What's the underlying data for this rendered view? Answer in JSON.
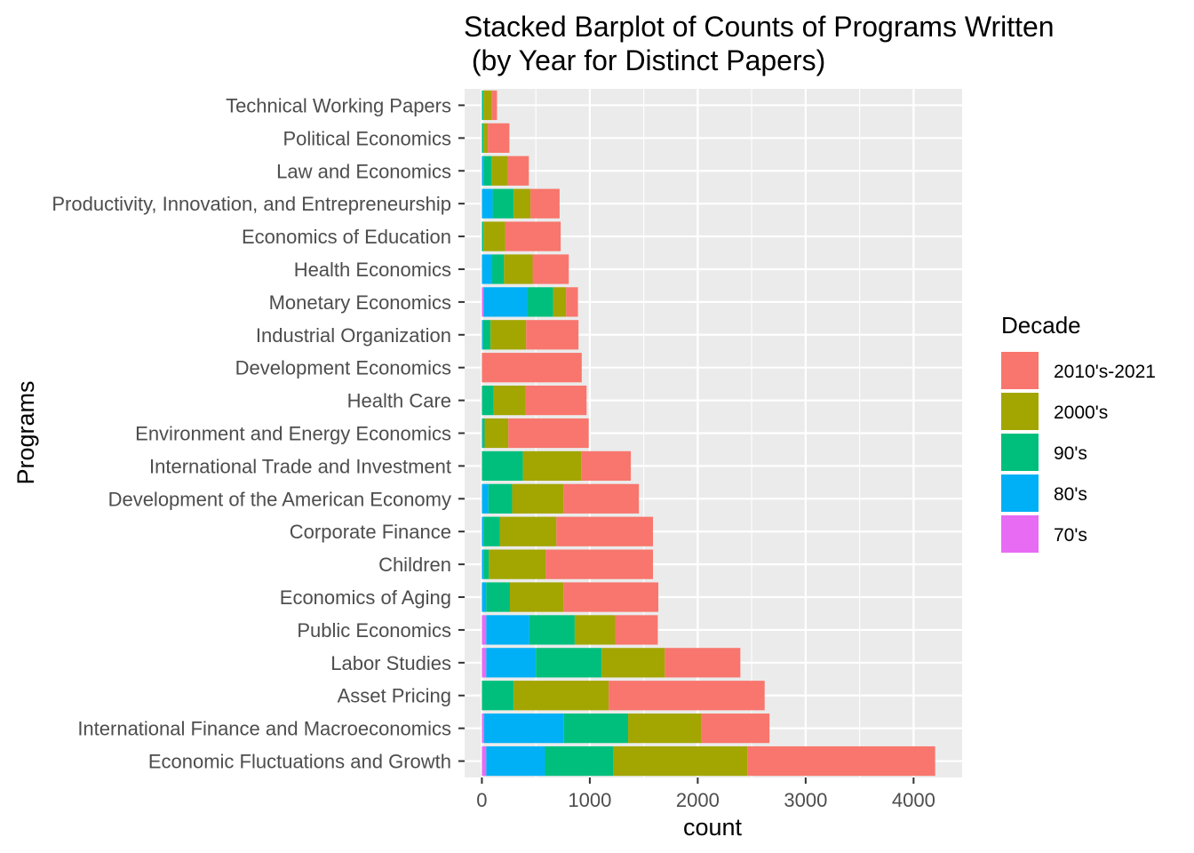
{
  "chart_data": {
    "type": "bar",
    "orientation": "horizontal",
    "stacked": true,
    "title_line1": "Stacked Barplot of Counts of Programs Written",
    "title_line2": " (by Year for Distinct Papers)",
    "xlabel": "count",
    "ylabel": "Programs",
    "xlim": [
      -160,
      4450
    ],
    "x_ticks": [
      0,
      1000,
      2000,
      3000,
      4000
    ],
    "x_tick_labels": [
      "0",
      "1000",
      "2000",
      "3000",
      "4000"
    ],
    "grid": true,
    "legend_position": "right",
    "legend_title": "Decade",
    "categories": [
      "Technical Working Papers",
      "Political Economics",
      "Law and Economics",
      "Productivity, Innovation, and Entrepreneurship",
      "Economics of Education",
      "Health Economics",
      "Monetary Economics",
      "Industrial Organization",
      "Development Economics",
      "Health Care",
      "Environment and Energy Economics",
      "International Trade and Investment",
      "Development of the American Economy",
      "Corporate Finance",
      "Children",
      "Economics of Aging",
      "Public Economics",
      "Labor Studies",
      "Asset Pricing",
      "International Finance and Macroeconomics",
      "Economic Fluctuations and Growth"
    ],
    "series": [
      {
        "name": "70's",
        "color": "#E76BF3",
        "values": [
          0,
          0,
          0,
          0,
          0,
          0,
          15,
          0,
          0,
          0,
          0,
          0,
          0,
          0,
          0,
          0,
          40,
          40,
          0,
          20,
          40
        ]
      },
      {
        "name": "80's",
        "color": "#00B0F6",
        "values": [
          0,
          0,
          20,
          100,
          0,
          95,
          405,
          10,
          0,
          0,
          5,
          0,
          60,
          15,
          15,
          40,
          400,
          460,
          0,
          740,
          545
        ]
      },
      {
        "name": "90's",
        "color": "#00BF7D",
        "values": [
          15,
          15,
          70,
          195,
          15,
          110,
          240,
          70,
          0,
          110,
          20,
          380,
          220,
          150,
          50,
          220,
          420,
          610,
          295,
          595,
          630
        ]
      },
      {
        "name": "2000's",
        "color": "#A3A500",
        "values": [
          75,
          40,
          150,
          155,
          200,
          265,
          120,
          330,
          0,
          290,
          220,
          540,
          475,
          525,
          525,
          495,
          375,
          585,
          880,
          675,
          1245
        ]
      },
      {
        "name": "2010's-2021",
        "color": "#F8766D",
        "values": [
          50,
          200,
          195,
          270,
          515,
          335,
          110,
          485,
          925,
          570,
          745,
          460,
          700,
          895,
          995,
          880,
          395,
          700,
          1445,
          635,
          1740
        ]
      }
    ],
    "legend_order": [
      "2010's-2021",
      "2000's",
      "90's",
      "80's",
      "70's"
    ]
  }
}
